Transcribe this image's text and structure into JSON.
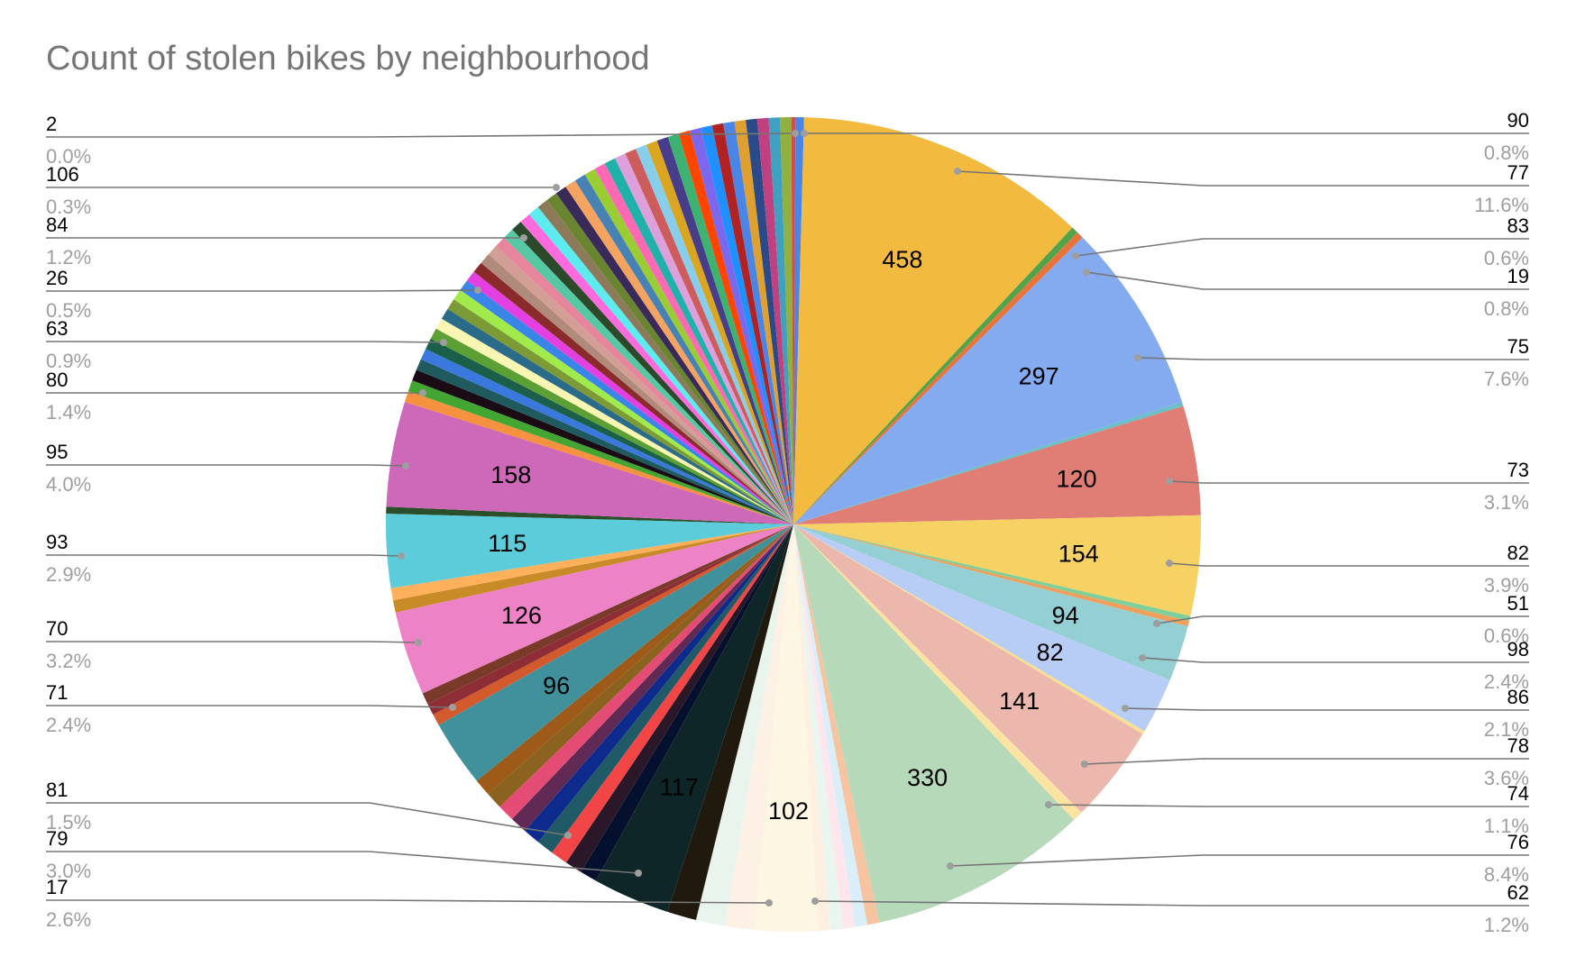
{
  "chart_data": {
    "type": "pie",
    "title": "Count of stolen bikes by neighbourhood",
    "labeled_slices": [
      {
        "value": 458,
        "percent": "11.6%",
        "color": "#f2bb3f"
      },
      {
        "value": 297,
        "percent": "7.6%",
        "color": "#84aaf0"
      },
      {
        "value": 120,
        "percent": "3.1%",
        "color": "#e07e75"
      },
      {
        "value": 154,
        "percent": "3.9%",
        "color": "#f6d163"
      },
      {
        "value": 94,
        "percent": "2.4%",
        "color": "#94cfd3"
      },
      {
        "value": 82,
        "percent": "2.1%",
        "color": "#b8cdf5"
      },
      {
        "value": 141,
        "percent": "3.6%",
        "color": "#ecb7ad"
      },
      {
        "value": 330,
        "percent": "8.4%",
        "color": "#b6d9b9"
      },
      {
        "value": 102,
        "percent": "2.6%",
        "color": "#fdf6e3"
      },
      {
        "value": 117,
        "percent": "3.0%",
        "color": "#0f2628"
      },
      {
        "value": 96,
        "percent": "2.4%",
        "color": "#41919c"
      },
      {
        "value": 126,
        "percent": "3.2%",
        "color": "#ee82c6"
      },
      {
        "value": 115,
        "percent": "2.9%",
        "color": "#5ccbda"
      },
      {
        "value": 158,
        "percent": "4.0%",
        "color": "#cd69b8"
      }
    ],
    "callouts_right": [
      {
        "value": "90",
        "percent": "0.8%"
      },
      {
        "value": "77",
        "percent": "11.6%"
      },
      {
        "value": "83",
        "percent": "0.6%"
      },
      {
        "value": "19",
        "percent": "0.8%"
      },
      {
        "value": "75",
        "percent": "7.6%"
      },
      {
        "value": "73",
        "percent": "3.1%"
      },
      {
        "value": "82",
        "percent": "3.9%"
      },
      {
        "value": "51",
        "percent": "0.6%"
      },
      {
        "value": "98",
        "percent": "2.4%"
      },
      {
        "value": "86",
        "percent": "2.1%"
      },
      {
        "value": "78",
        "percent": "3.6%"
      },
      {
        "value": "74",
        "percent": "1.1%"
      },
      {
        "value": "76",
        "percent": "8.4%"
      },
      {
        "value": "62",
        "percent": "1.2%"
      }
    ],
    "callouts_left": [
      {
        "value": "2",
        "percent": "0.0%"
      },
      {
        "value": "106",
        "percent": "0.3%"
      },
      {
        "value": "84",
        "percent": "1.2%"
      },
      {
        "value": "26",
        "percent": "0.5%"
      },
      {
        "value": "63",
        "percent": "0.9%"
      },
      {
        "value": "80",
        "percent": "1.4%"
      },
      {
        "value": "95",
        "percent": "4.0%"
      },
      {
        "value": "93",
        "percent": "2.9%"
      },
      {
        "value": "70",
        "percent": "3.2%"
      },
      {
        "value": "71",
        "percent": "2.4%"
      },
      {
        "value": "81",
        "percent": "1.5%"
      },
      {
        "value": "79",
        "percent": "3.0%"
      },
      {
        "value": "17",
        "percent": "2.6%"
      }
    ],
    "colors": {
      "title": "#757575",
      "percent_text": "#9e9e9e",
      "leader_line": "#757575"
    }
  }
}
